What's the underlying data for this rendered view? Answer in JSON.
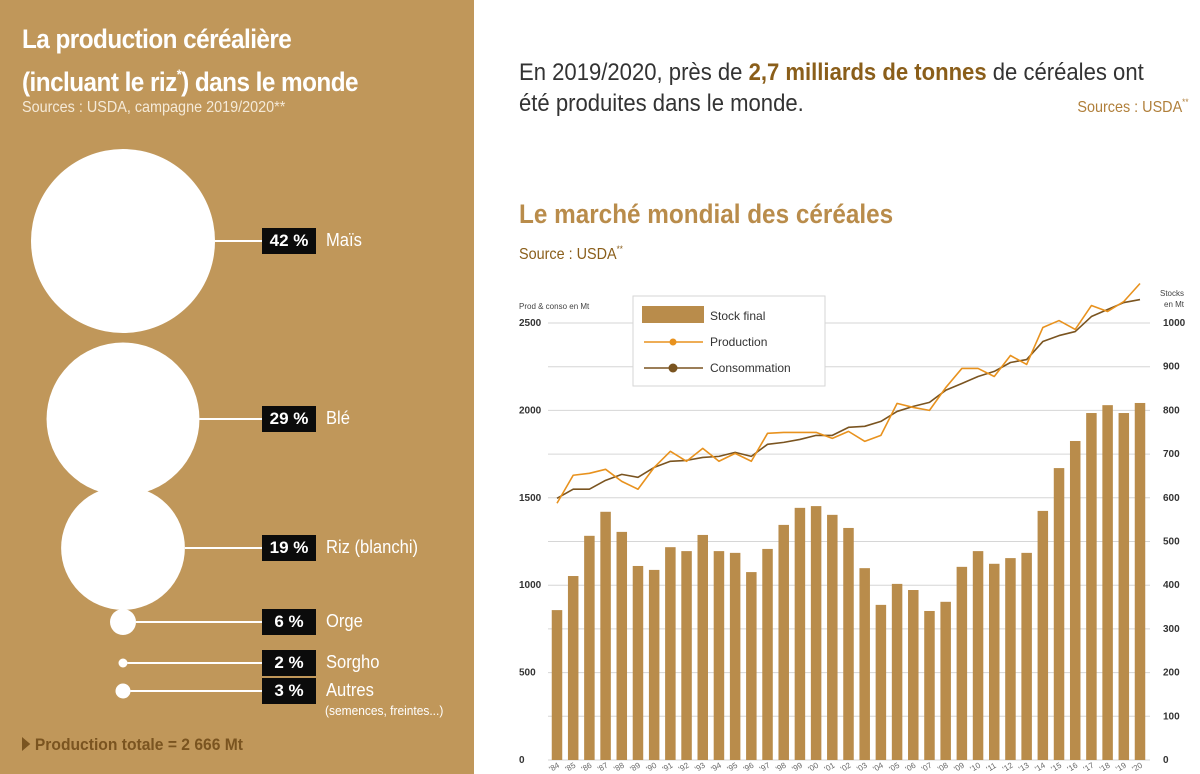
{
  "left_panel": {
    "title_line1": "La production céréalière",
    "title_line2_a": "(incluant le riz",
    "title_line2_sup": "*",
    "title_line2_b": ") dans le monde",
    "subtitle": "Sources : USDA, campagne 2019/2020**",
    "items": [
      {
        "pct": "42 %",
        "label": "Maïs",
        "share": 42
      },
      {
        "pct": "29 %",
        "label": "Blé",
        "share": 29
      },
      {
        "pct": "19 %",
        "label": "Riz (blanchi)",
        "share": 19
      },
      {
        "pct": "6 %",
        "label": "Orge",
        "share": 6
      },
      {
        "pct": "2 %",
        "label": "Sorgho",
        "share": 2
      },
      {
        "pct": "3 %",
        "label": "Autres",
        "share": 3,
        "note": "(semences, freintes...)"
      }
    ],
    "total": "Production totale = 2 666 Mt"
  },
  "intro": {
    "text_a": "En 2019/2020, près de ",
    "text_bold": "2,7 milliards de tonnes",
    "text_b": " de céréales ont été produites dans le monde.",
    "source": "Sources : USDA",
    "source_sup": "**"
  },
  "colors": {
    "panel": "#C0975A",
    "bars": "#B98C4B",
    "production": "#E8921E",
    "consommation": "#7A5420",
    "accent_text": "#8A5E1A"
  },
  "chart_data": {
    "type": "bar+line",
    "title": "Le marché mondial des céréales",
    "source": "Source : USDA",
    "source_sup": "**",
    "left_axis": {
      "label": "Prod & conso en Mt",
      "range": [
        0,
        2500
      ],
      "ticks": [
        0,
        500,
        1000,
        1500,
        2000,
        2500
      ],
      "minor_step": 250
    },
    "right_axis": {
      "label_line1": "Stocks",
      "label_line2": "en Mt",
      "range": [
        0,
        1000
      ],
      "ticks": [
        0,
        100,
        200,
        300,
        400,
        500,
        600,
        700,
        800,
        900,
        1000
      ]
    },
    "legend": {
      "placement": "top-left",
      "entries": [
        "Stock final",
        "Production",
        "Consommation"
      ]
    },
    "categories": [
      "'84",
      "'85",
      "'86",
      "'87",
      "'88",
      "'89",
      "'90",
      "'91",
      "'92",
      "'93",
      "'94",
      "'95",
      "'96",
      "'97",
      "'98",
      "'99",
      "'00",
      "'01",
      "'02",
      "'03",
      "'04",
      "'05",
      "'06",
      "'07",
      "'08",
      "'09",
      "'10",
      "'11",
      "'12",
      "'13",
      "'14",
      "'15",
      "'16",
      "'17",
      "'18",
      "'19",
      "'20"
    ],
    "series": [
      {
        "name": "Stock final",
        "type": "bar",
        "axis": "right",
        "values": [
          343,
          421,
          513,
          568,
          522,
          444,
          435,
          487,
          478,
          515,
          478,
          474,
          430,
          483,
          538,
          577,
          581,
          561,
          531,
          439,
          355,
          403,
          389,
          341,
          362,
          442,
          478,
          449,
          462,
          474,
          570,
          668,
          730,
          794,
          812,
          794,
          817
        ]
      },
      {
        "name": "Production",
        "type": "line",
        "axis": "left",
        "values": [
          1469,
          1629,
          1640,
          1663,
          1594,
          1549,
          1674,
          1766,
          1709,
          1783,
          1709,
          1754,
          1709,
          1869,
          1874,
          1874,
          1874,
          1840,
          1880,
          1823,
          1857,
          2040,
          2017,
          2000,
          2130,
          2240,
          2240,
          2194,
          2314,
          2263,
          2474,
          2514,
          2463,
          2600,
          2566,
          2623,
          2726
        ]
      },
      {
        "name": "Consommation",
        "type": "line",
        "axis": "left",
        "values": [
          1497,
          1549,
          1549,
          1600,
          1634,
          1617,
          1674,
          1709,
          1714,
          1731,
          1737,
          1760,
          1737,
          1806,
          1817,
          1834,
          1857,
          1857,
          1903,
          1909,
          1937,
          1994,
          2023,
          2046,
          2115,
          2154,
          2194,
          2223,
          2274,
          2291,
          2394,
          2428,
          2451,
          2537,
          2577,
          2617,
          2634
        ]
      }
    ]
  }
}
